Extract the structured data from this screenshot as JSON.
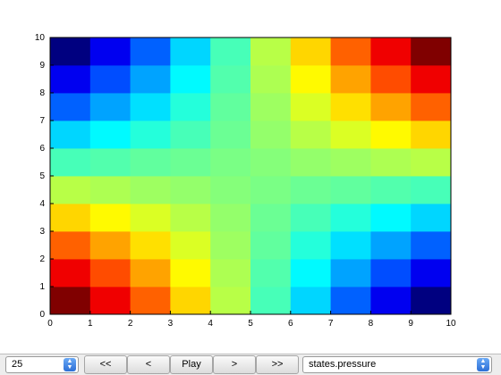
{
  "chart_data": {
    "type": "heatmap",
    "x_ticks": [
      "0",
      "1",
      "2",
      "3",
      "4",
      "5",
      "6",
      "7",
      "8",
      "9",
      "10"
    ],
    "y_ticks": [
      "0",
      "1",
      "2",
      "3",
      "4",
      "5",
      "6",
      "7",
      "8",
      "9",
      "10"
    ],
    "xlim": [
      0,
      10
    ],
    "ylim": [
      0,
      10
    ],
    "colormap": "jet",
    "value_range": [
      -1,
      1
    ],
    "rows_bottom_to_top": [
      [
        1.0,
        0.78,
        0.56,
        0.33,
        0.11,
        -0.11,
        -0.33,
        -0.56,
        -0.78,
        -1.0
      ],
      [
        0.78,
        0.6,
        0.43,
        0.26,
        0.09,
        -0.09,
        -0.26,
        -0.43,
        -0.6,
        -0.78
      ],
      [
        0.56,
        0.43,
        0.31,
        0.18,
        0.06,
        -0.06,
        -0.18,
        -0.31,
        -0.43,
        -0.56
      ],
      [
        0.33,
        0.26,
        0.18,
        0.11,
        0.04,
        -0.04,
        -0.11,
        -0.18,
        -0.26,
        -0.33
      ],
      [
        0.11,
        0.09,
        0.06,
        0.04,
        0.01,
        -0.01,
        -0.04,
        -0.06,
        -0.09,
        -0.11
      ],
      [
        -0.11,
        -0.09,
        -0.06,
        -0.04,
        -0.01,
        0.01,
        0.04,
        0.06,
        0.09,
        0.11
      ],
      [
        -0.33,
        -0.26,
        -0.18,
        -0.11,
        -0.04,
        0.04,
        0.11,
        0.18,
        0.26,
        0.33
      ],
      [
        -0.56,
        -0.43,
        -0.31,
        -0.18,
        -0.06,
        0.06,
        0.18,
        0.31,
        0.43,
        0.56
      ],
      [
        -0.78,
        -0.6,
        -0.43,
        -0.26,
        -0.09,
        0.09,
        0.26,
        0.43,
        0.6,
        0.78
      ],
      [
        -1.0,
        -0.78,
        -0.56,
        -0.33,
        -0.11,
        0.11,
        0.33,
        0.56,
        0.78,
        1.0
      ]
    ]
  },
  "controls": {
    "frame_value": "25",
    "first_label": "<<",
    "prev_label": "<",
    "play_label": "Play",
    "next_label": ">",
    "last_label": ">>",
    "variable_value": "states.pressure"
  }
}
